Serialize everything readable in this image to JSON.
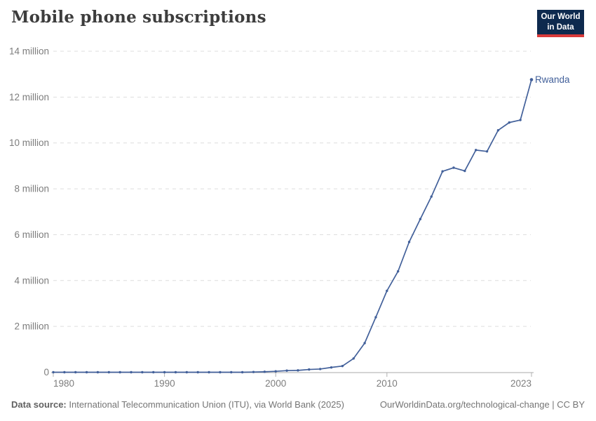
{
  "header": {
    "title": "Mobile phone subscriptions",
    "logo": {
      "line1": "Our World",
      "line2": "in Data"
    }
  },
  "chart_data": {
    "type": "line",
    "title": "Mobile phone subscriptions",
    "entity_label": "Rwanda",
    "unit": "million subscriptions",
    "xlim": [
      1980,
      2023
    ],
    "ylim_millions": [
      0,
      14
    ],
    "grid": "horizontal dashed",
    "legend_position": "end-of-line label",
    "x_ticks": [
      1980,
      1990,
      2000,
      2010,
      2023
    ],
    "y_ticks_millions": [
      0,
      2,
      4,
      6,
      8,
      10,
      12,
      14
    ],
    "y_tick_labels": [
      "0",
      "2 million",
      "4 million",
      "6 million",
      "8 million",
      "10 million",
      "12 million",
      "14 million"
    ],
    "series": [
      {
        "name": "Rwanda",
        "color": "#42609a",
        "x": [
          1980,
          1981,
          1982,
          1983,
          1984,
          1985,
          1986,
          1987,
          1988,
          1989,
          1990,
          1991,
          1992,
          1993,
          1994,
          1995,
          1996,
          1997,
          1998,
          1999,
          2000,
          2001,
          2002,
          2003,
          2004,
          2005,
          2006,
          2007,
          2008,
          2009,
          2010,
          2011,
          2012,
          2013,
          2014,
          2015,
          2016,
          2017,
          2018,
          2019,
          2020,
          2021,
          2022,
          2023
        ],
        "values_millions": [
          0,
          0,
          0,
          0,
          0,
          0,
          0,
          0,
          0,
          0,
          0,
          0,
          0,
          0,
          0,
          0,
          0,
          0,
          0.01,
          0.02,
          0.04,
          0.07,
          0.08,
          0.12,
          0.14,
          0.21,
          0.27,
          0.6,
          1.27,
          2.4,
          3.55,
          4.4,
          5.68,
          6.68,
          7.66,
          8.76,
          8.92,
          8.78,
          9.69,
          9.63,
          10.55,
          10.89,
          11.0,
          12.76
        ]
      }
    ]
  },
  "footer": {
    "source_label": "Data source:",
    "source_text": "International Telecommunication Union (ITU), via World Bank (2025)",
    "link_text": "OurWorldinData.org/technological-change | CC BY"
  },
  "colors": {
    "line": "#42609a",
    "logo_bg": "#0e2a4e",
    "logo_bar": "#d93a3a",
    "gridline": "#dddddd",
    "axis_line": "#a9a9a9",
    "tick_mark": "#b0b0b0",
    "axis_text": "#7d7d7d",
    "title_text": "#3d3d3d"
  }
}
